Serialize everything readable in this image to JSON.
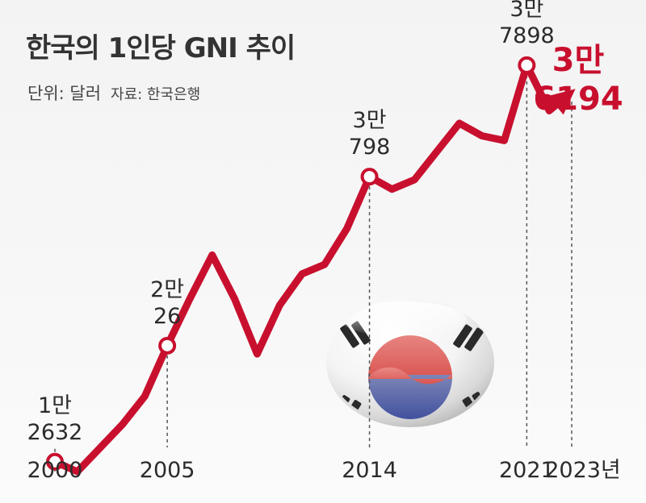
{
  "title": "한국의 1인당 GNI 추이",
  "unit_label": "단위: 달러",
  "source_label": "자료: 한국은행",
  "colors": {
    "line": "#c8102e",
    "marker_fill": "#ffffff",
    "final_label": "#c8102e"
  },
  "chart_data": {
    "type": "line",
    "title": "한국의 1인당 GNI 추이",
    "ylabel": "단위: 달러",
    "x": [
      2000,
      2001,
      2002,
      2003,
      2004,
      2005,
      2006,
      2007,
      2008,
      2009,
      2010,
      2011,
      2012,
      2013,
      2014,
      2015,
      2016,
      2017,
      2018,
      2019,
      2020,
      2021,
      2022,
      2023
    ],
    "values": [
      12632,
      12000,
      13500,
      15000,
      16800,
      20026,
      23000,
      25800,
      23000,
      19500,
      22600,
      24600,
      25200,
      27500,
      30798,
      30000,
      30600,
      32400,
      34200,
      33400,
      33100,
      37898,
      35000,
      36194
    ],
    "ylim": [
      10000,
      40000
    ],
    "grid": false,
    "final_arrow": true,
    "annotations": [
      {
        "x": 2000,
        "line1": "1만",
        "line2": "2632"
      },
      {
        "x": 2005,
        "line1": "2만",
        "line2": "26"
      },
      {
        "x": 2014,
        "line1": "3만",
        "line2": "798"
      },
      {
        "x": 2021,
        "line1": "3만",
        "line2": "7898"
      },
      {
        "x": 2023,
        "line1": "3만",
        "line2": "6194",
        "highlight": true
      }
    ],
    "tick_labels": [
      {
        "x": 2000,
        "label": "2000"
      },
      {
        "x": 2005,
        "label": "2005"
      },
      {
        "x": 2014,
        "label": "2014"
      },
      {
        "x": 2021,
        "label": "2021"
      },
      {
        "x": 2023,
        "label": "2023년"
      }
    ]
  },
  "decoration": {
    "image": "korean-flag-orb-icon"
  }
}
